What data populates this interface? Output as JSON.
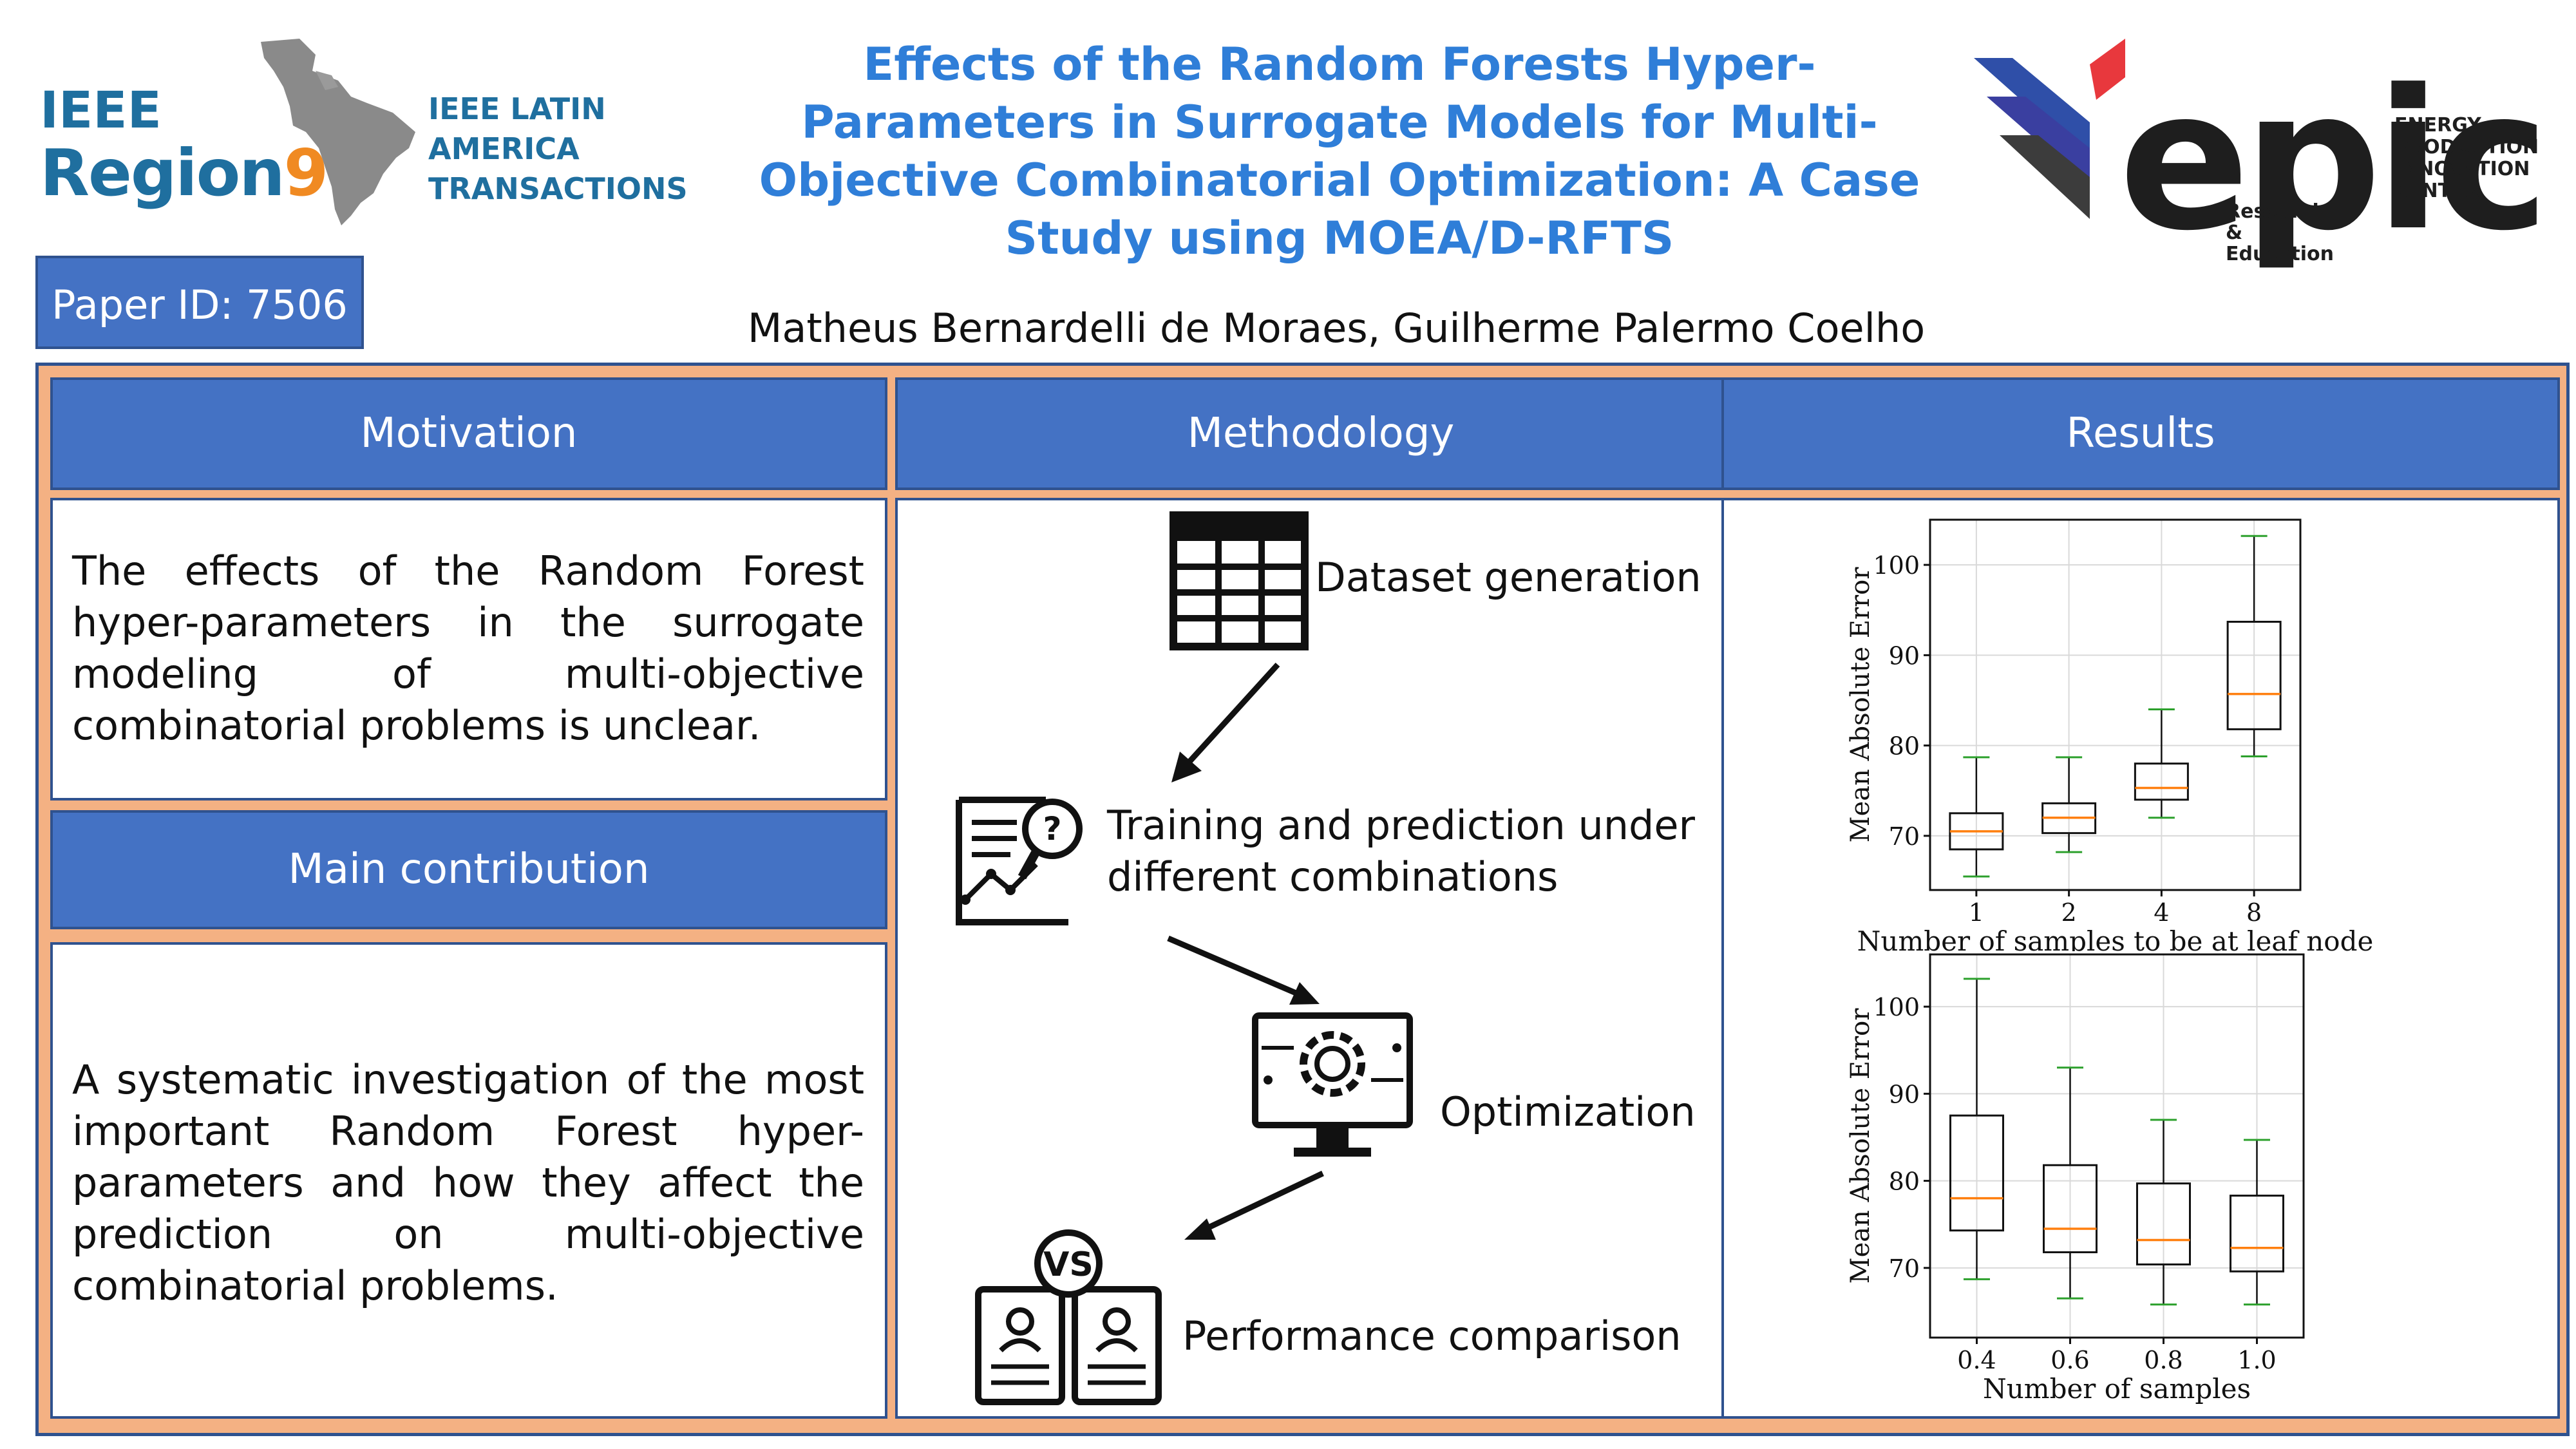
{
  "header": {
    "title": "Effects of the Random Forests Hyper-Parameters in Surrogate Models for Multi-Objective Combinatorial Optimization: A Case Study using MOEA/D-RFTS",
    "authors": "Matheus Bernardelli de Moraes, Guilherme Palermo Coelho",
    "paper_id": "Paper ID: 7506"
  },
  "logos": {
    "ieee": "IEEE",
    "region": "Region",
    "region_number": "9",
    "journal_line1": "IEEE LATIN AMERICA",
    "journal_line2": "TRANSACTIONS",
    "epic": "epic",
    "epic_sub_line1": "Research &",
    "epic_sub_line2": "Education",
    "epic_line1": "ENERGY",
    "epic_line2": "PRODUCTION",
    "epic_line3": "INNOVATION",
    "epic_line4": "CENTER"
  },
  "sections": {
    "motivation": {
      "title": "Motivation",
      "text": "The effects of the Random Forest hyper-parameters in the surrogate modeling of multi-objective combinatorial problems is unclear."
    },
    "contribution": {
      "title": "Main contribution",
      "text": "A systematic investigation of the most important Random Forest hyper-parameters and how they affect the prediction on multi-objective combinatorial problems."
    },
    "methodology": {
      "title": "Methodology",
      "steps": [
        {
          "label": "Dataset generation",
          "icon": "table-icon"
        },
        {
          "label": "Training and prediction under different combinations",
          "icon": "report-analysis-icon"
        },
        {
          "label": "Optimization",
          "icon": "gear-monitor-icon"
        },
        {
          "label": "Performance comparison",
          "icon": "versus-documents-icon"
        }
      ]
    },
    "results": {
      "title": "Results"
    }
  },
  "colors": {
    "header_blue": "#4472c4",
    "border_blue": "#2f528f",
    "frame_orange": "#f4b183",
    "title_blue": "#2f7ed8",
    "median": "#ff7f0e",
    "whisker": "#2ca02c"
  },
  "chart_data": [
    {
      "type": "box",
      "xlabel": "Number of samples to be at leaf node",
      "ylabel": "Mean Absolute Error",
      "ylim": [
        64,
        105
      ],
      "yticks": [
        70,
        80,
        90,
        100
      ],
      "grid": true,
      "categories": [
        "1",
        "2",
        "4",
        "8"
      ],
      "boxes": [
        {
          "min": 65.5,
          "q1": 68.5,
          "median": 70.5,
          "q3": 72.5,
          "max": 78.7
        },
        {
          "min": 68.2,
          "q1": 70.3,
          "median": 72,
          "q3": 73.6,
          "max": 78.7
        },
        {
          "min": 72,
          "q1": 74,
          "median": 75.3,
          "q3": 78,
          "max": 84
        },
        {
          "min": 78.8,
          "q1": 81.8,
          "median": 85.7,
          "q3": 93.7,
          "max": 103.2
        }
      ]
    },
    {
      "type": "box",
      "xlabel": "Number of samples",
      "ylabel": "Mean Absolute Error",
      "ylim": [
        62,
        106
      ],
      "yticks": [
        70,
        80,
        90,
        100
      ],
      "grid": true,
      "categories": [
        "0.4",
        "0.6",
        "0.8",
        "1.0"
      ],
      "boxes": [
        {
          "min": 68.7,
          "q1": 74.3,
          "median": 78,
          "q3": 87.5,
          "max": 103.2
        },
        {
          "min": 66.5,
          "q1": 71.8,
          "median": 74.5,
          "q3": 81.8,
          "max": 93
        },
        {
          "min": 65.8,
          "q1": 70.4,
          "median": 73.2,
          "q3": 79.7,
          "max": 87
        },
        {
          "min": 65.8,
          "q1": 69.6,
          "median": 72.3,
          "q3": 78.3,
          "max": 84.7
        }
      ]
    }
  ]
}
